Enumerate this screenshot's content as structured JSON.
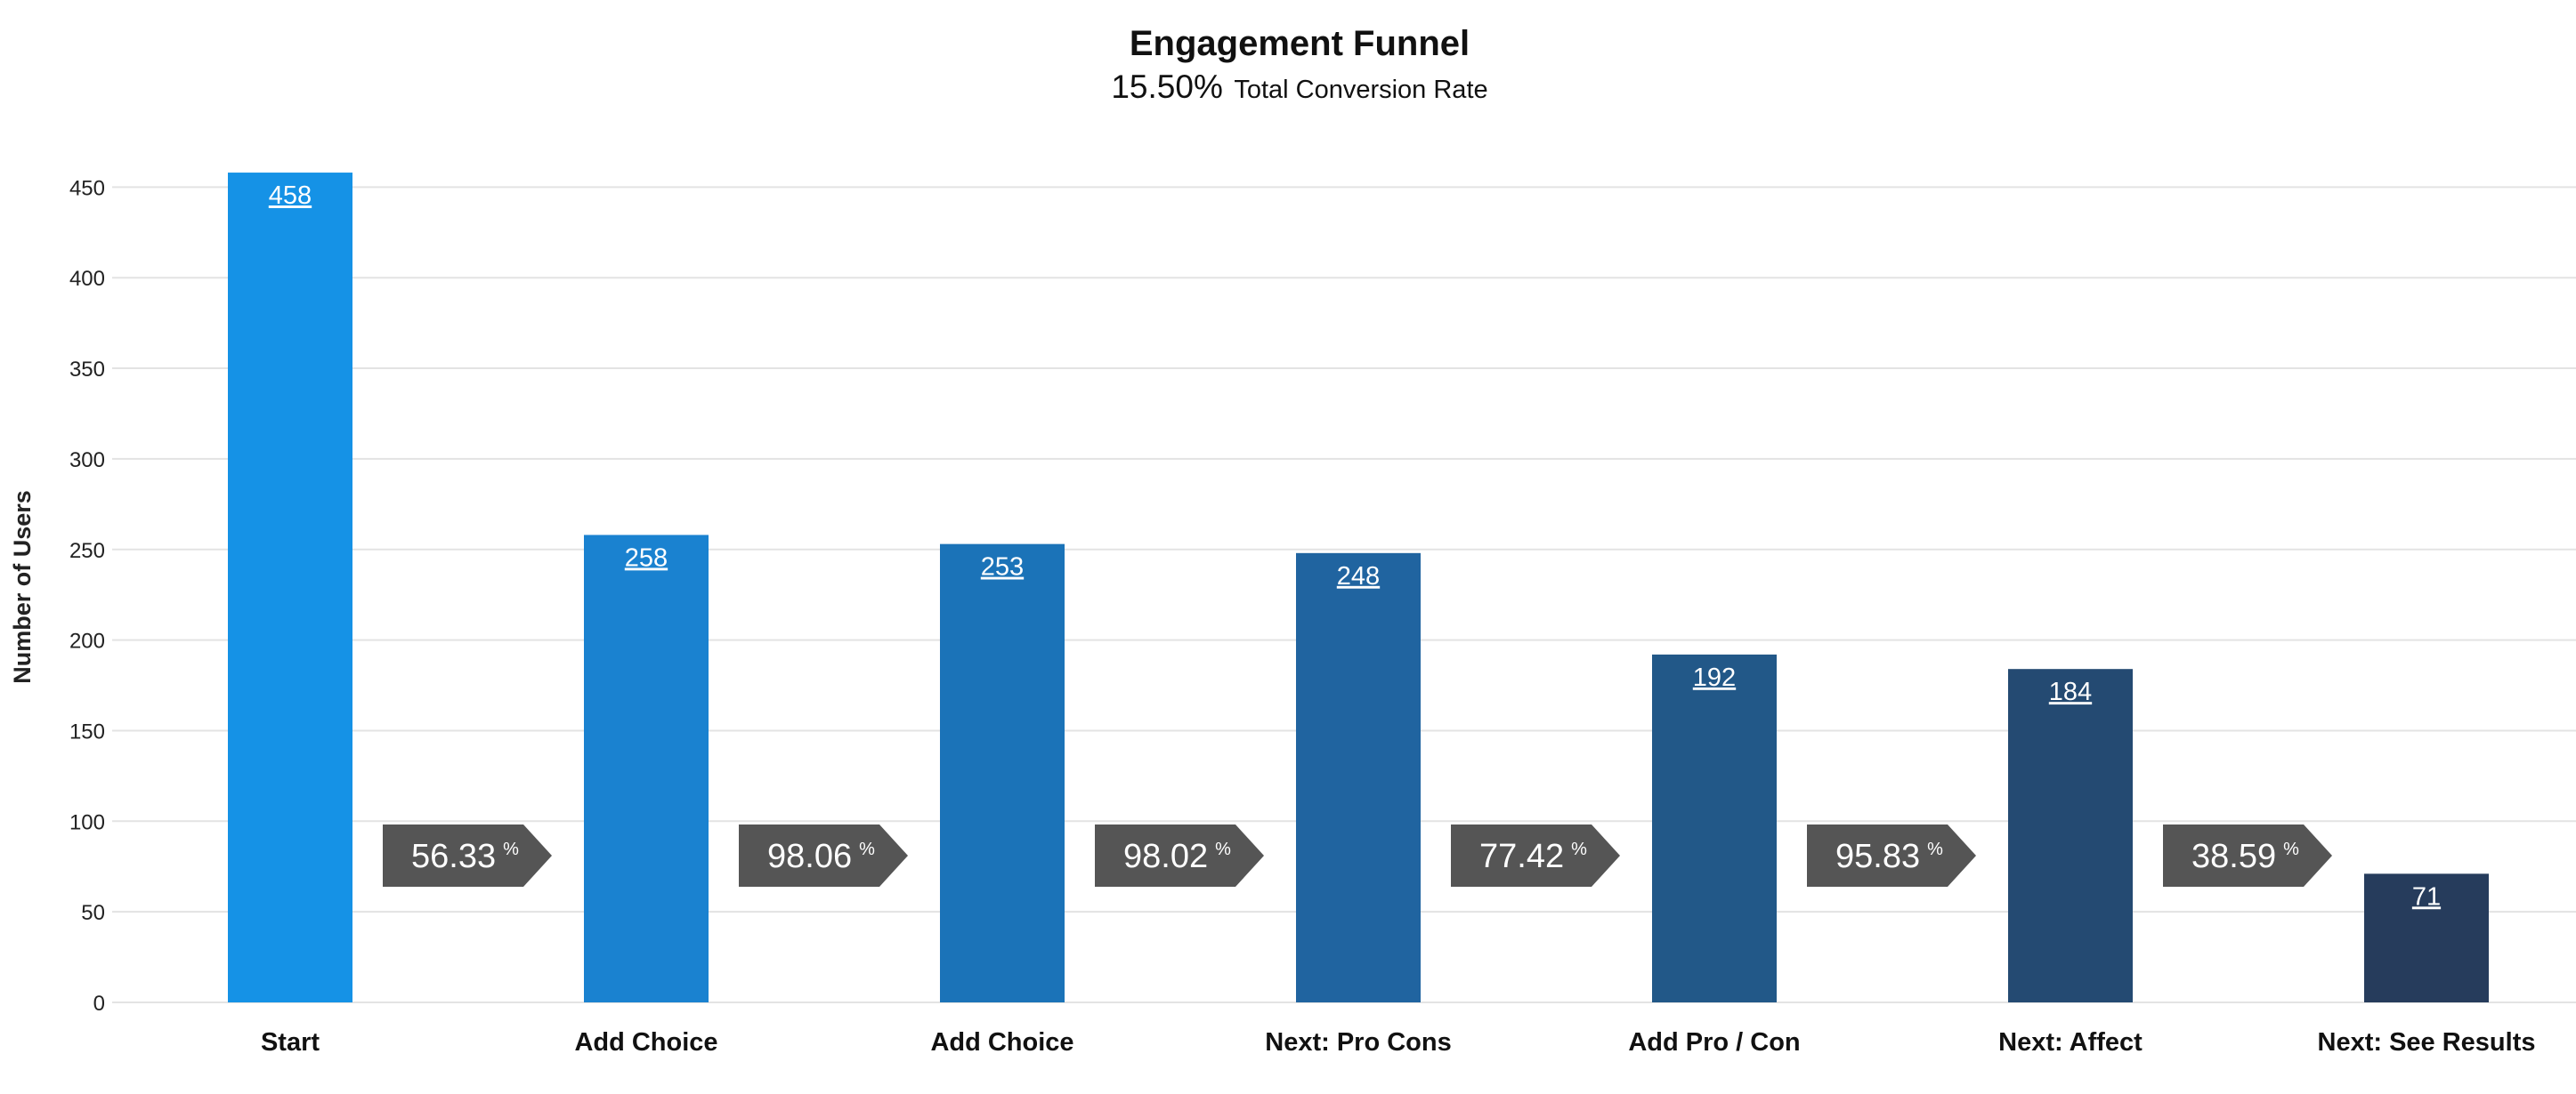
{
  "chart_data": {
    "type": "bar",
    "title": "Engagement Funnel",
    "subtitle_value": "15.50%",
    "subtitle_label": "Total Conversion Rate",
    "ylabel": "Number of Users",
    "xlabel": "",
    "ylim": [
      0,
      450
    ],
    "yticks": [
      0,
      50,
      100,
      150,
      200,
      250,
      300,
      350,
      400,
      450
    ],
    "grid": true,
    "categories": [
      "Start",
      "Add Choice",
      "Add Choice",
      "Next: Pro Cons",
      "Add Pro / Con",
      "Next: Affect",
      "Next: See Results"
    ],
    "values": [
      458,
      258,
      253,
      248,
      192,
      184,
      71
    ],
    "bar_colors": [
      "#1592e6",
      "#1a82d0",
      "#1b73b8",
      "#2064a0",
      "#225888",
      "#244a72",
      "#263c5c"
    ],
    "conversions": [
      {
        "value": "56.33",
        "unit": "%"
      },
      {
        "value": "98.06",
        "unit": "%"
      },
      {
        "value": "98.02",
        "unit": "%"
      },
      {
        "value": "77.42",
        "unit": "%"
      },
      {
        "value": "95.83",
        "unit": "%"
      },
      {
        "value": "38.59",
        "unit": "%"
      }
    ],
    "conversion_color": "#555555"
  }
}
